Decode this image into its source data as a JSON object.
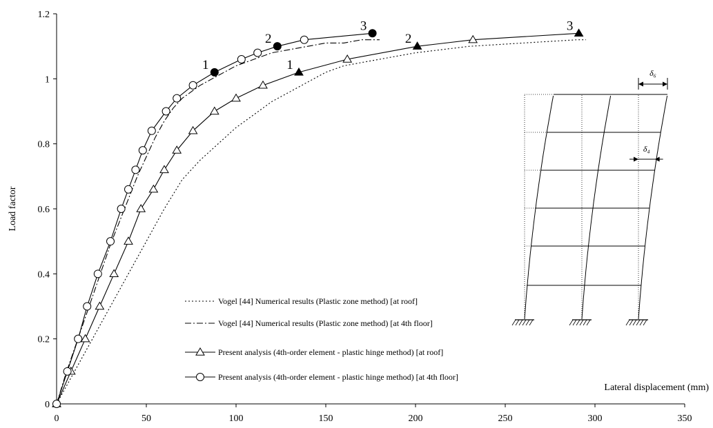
{
  "chart_data": {
    "type": "line",
    "title": "",
    "xlabel": "Lateral displacement (mm)",
    "ylabel": "Load factor",
    "xlim": [
      0,
      350
    ],
    "ylim": [
      0,
      1.2
    ],
    "x_ticks": [
      "0",
      "50",
      "100",
      "150",
      "200",
      "250",
      "300",
      "350"
    ],
    "y_ticks": [
      "0",
      "0.2",
      "0.4",
      "0.6",
      "0.8",
      "1",
      "1.2"
    ],
    "grid": false,
    "legend_position": "bottom-center",
    "series": [
      {
        "name": "Vogel [44] Numerical results (Plastic zone method) [at roof]",
        "line_style": "dotted",
        "marker": "none",
        "x": [
          0,
          5,
          10,
          20,
          30,
          40,
          50,
          60,
          70,
          80,
          90,
          100,
          110,
          120,
          130,
          140,
          150,
          160,
          170,
          180,
          200,
          230,
          260,
          290,
          295
        ],
        "y": [
          0,
          0.05,
          0.1,
          0.2,
          0.3,
          0.4,
          0.5,
          0.6,
          0.69,
          0.75,
          0.8,
          0.85,
          0.89,
          0.93,
          0.96,
          0.99,
          1.02,
          1.04,
          1.05,
          1.06,
          1.08,
          1.1,
          1.11,
          1.12,
          1.12
        ]
      },
      {
        "name": "Vogel [44] Numerical results (Plastic zone method) [at 4th floor]",
        "line_style": "dashdot",
        "marker": "none",
        "x": [
          0,
          5,
          10,
          15,
          20,
          25,
          30,
          35,
          40,
          45,
          50,
          55,
          60,
          65,
          70,
          75,
          80,
          90,
          100,
          110,
          120,
          130,
          140,
          150,
          160,
          170,
          180
        ],
        "y": [
          0,
          0.09,
          0.17,
          0.25,
          0.33,
          0.41,
          0.49,
          0.56,
          0.63,
          0.7,
          0.76,
          0.82,
          0.87,
          0.91,
          0.94,
          0.96,
          0.98,
          1.01,
          1.04,
          1.06,
          1.08,
          1.09,
          1.1,
          1.11,
          1.11,
          1.12,
          1.12
        ]
      },
      {
        "name": "Present analysis (4th-order element - plastic hinge method) [at roof]",
        "line_style": "solid",
        "marker": "triangle",
        "x": [
          0,
          8,
          16,
          24,
          32,
          40,
          47,
          54,
          60,
          67,
          76,
          88,
          100,
          115,
          135,
          162,
          201,
          232,
          291
        ],
        "y": [
          0,
          0.1,
          0.2,
          0.3,
          0.4,
          0.5,
          0.6,
          0.66,
          0.72,
          0.78,
          0.84,
          0.9,
          0.94,
          0.98,
          1.02,
          1.06,
          1.1,
          1.12,
          1.14
        ],
        "filled_points": [
          {
            "label": "1",
            "x": 135,
            "y": 1.02
          },
          {
            "label": "2",
            "x": 201,
            "y": 1.1
          },
          {
            "label": "3",
            "x": 291,
            "y": 1.14
          }
        ]
      },
      {
        "name": "Present analysis (4th-order element - plastic hinge method) [at 4th floor]",
        "line_style": "solid",
        "marker": "circle",
        "x": [
          0,
          6,
          12,
          17,
          23,
          30,
          36,
          40,
          44,
          48,
          53,
          61,
          67,
          76,
          88,
          103,
          112,
          123,
          138,
          176
        ],
        "y": [
          0,
          0.1,
          0.2,
          0.3,
          0.4,
          0.5,
          0.6,
          0.66,
          0.72,
          0.78,
          0.84,
          0.9,
          0.94,
          0.98,
          1.02,
          1.06,
          1.08,
          1.1,
          1.12,
          1.14
        ],
        "filled_points": [
          {
            "label": "1",
            "x": 88,
            "y": 1.02
          },
          {
            "label": "2",
            "x": 123,
            "y": 1.1
          },
          {
            "label": "3",
            "x": 176,
            "y": 1.14
          }
        ]
      }
    ],
    "inset": {
      "roof_disp_label": "δ₆",
      "floor4_disp_label": "δ₄"
    }
  }
}
